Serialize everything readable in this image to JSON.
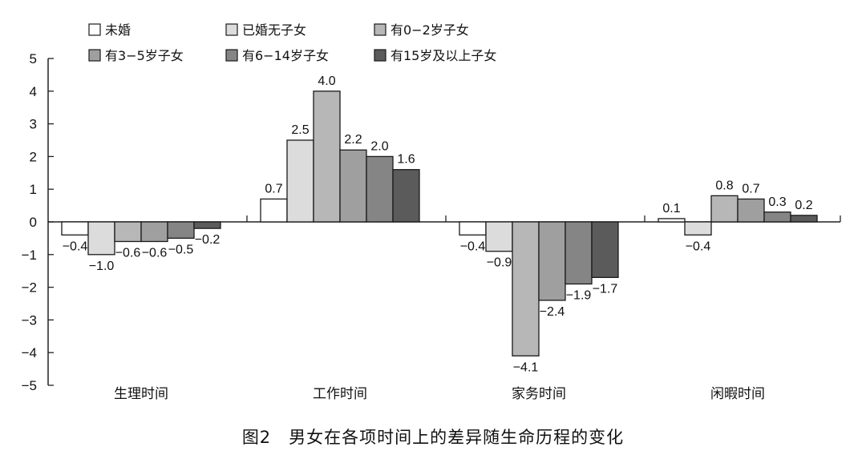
{
  "caption": "图2　男女在各项时间上的差异随生命历程的变化",
  "chart_data": {
    "type": "bar",
    "categories": [
      "生理时间",
      "工作时间",
      "家务时间",
      "闲暇时间"
    ],
    "series": [
      {
        "name": "未婚",
        "color": "#ffffff",
        "values": [
          -0.4,
          0.7,
          -0.4,
          0.1
        ]
      },
      {
        "name": "已婚无子女",
        "color": "#dcdcdc",
        "values": [
          -1.0,
          2.5,
          -0.9,
          -0.4
        ]
      },
      {
        "name": "有0−2岁子女",
        "color": "#b7b7b7",
        "values": [
          -0.6,
          4.0,
          -4.1,
          0.8
        ]
      },
      {
        "name": "有3−5岁子女",
        "color": "#9f9f9f",
        "values": [
          -0.6,
          2.2,
          -2.4,
          0.7
        ]
      },
      {
        "name": "有6−14岁子女",
        "color": "#858585",
        "values": [
          -0.5,
          2.0,
          -1.9,
          0.3
        ]
      },
      {
        "name": "有15岁及以上子女",
        "color": "#5b5b5b",
        "values": [
          -0.2,
          1.6,
          -1.7,
          0.2
        ]
      }
    ],
    "data_labels": [
      [
        "−0.4",
        "−1.0",
        "−0.6",
        "−0.6",
        "−0.5",
        "−0.2"
      ],
      [
        "0.7",
        "2.5",
        "4.0",
        "2.2",
        "2.0",
        "1.6"
      ],
      [
        "−0.4",
        "−0.9",
        "−4.1",
        "−2.4",
        "−1.9",
        "−1.7"
      ],
      [
        "0.1",
        "−0.4",
        "0.8",
        "0.7",
        "0.3",
        "0.2"
      ]
    ],
    "y_ticks": [
      5,
      4,
      3,
      2,
      1,
      0,
      -1,
      -2,
      -3,
      -4,
      -5
    ],
    "y_tick_labels": [
      "5",
      "4",
      "3",
      "2",
      "1",
      "0",
      "−1",
      "−2",
      "−3",
      "−4",
      "−5"
    ],
    "ylim": [
      -5,
      5
    ],
    "legend_placement": "top",
    "grid": false
  }
}
